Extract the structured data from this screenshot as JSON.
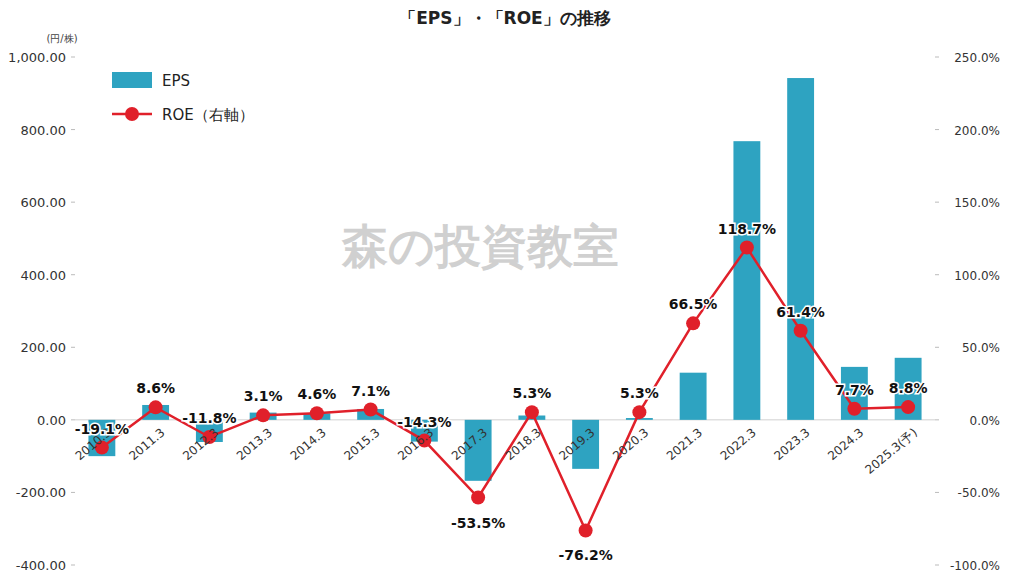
{
  "chart_data": {
    "type": "bar",
    "title": "「EPS」・「ROE」の推移",
    "y_label": "(円/株)",
    "annotations": [
      "森の投資教室"
    ],
    "categories": [
      "2010.3",
      "2011.3",
      "2012.3",
      "2013.3",
      "2014.3",
      "2015.3",
      "2016.3",
      "2017.3",
      "2018.3",
      "2019.3",
      "2020.3",
      "2021.3",
      "2022.3",
      "2023.3",
      "2024.3",
      "2025.3(予)"
    ],
    "series": [
      {
        "name": "EPS",
        "type": "bar",
        "color": "#2ea3c1",
        "values": [
          -100,
          41,
          -61,
          20,
          18,
          30,
          -60,
          -168,
          12,
          -135,
          5,
          130,
          768,
          942,
          146,
          171
        ]
      },
      {
        "name": "ROE（右軸）",
        "type": "line",
        "axis": "y2",
        "color": "#e0202a",
        "marker": "circle",
        "line_style": "solid",
        "data_labels": true,
        "values": [
          -19.1,
          8.6,
          -11.8,
          3.1,
          4.6,
          7.1,
          -14.3,
          -53.5,
          5.3,
          -76.2,
          5.3,
          66.5,
          118.7,
          61.4,
          7.7,
          8.8
        ],
        "value_labels": [
          "-19.1%",
          "8.6%",
          "-11.8%",
          "3.1%",
          "4.6%",
          "7.1%",
          "-14.3%",
          "-53.5%",
          "5.3%",
          "-76.2%",
          "5.3%",
          "66.5%",
          "118.7%",
          "61.4%",
          "7.7%",
          "8.8%"
        ]
      }
    ],
    "ylim": [
      -400,
      1000
    ],
    "yticks": [
      {
        "value": -400,
        "label": "-400.00"
      },
      {
        "value": -200,
        "label": "-200.00"
      },
      {
        "value": 0,
        "label": "0.00"
      },
      {
        "value": 200,
        "label": "200.00"
      },
      {
        "value": 400,
        "label": "400.00"
      },
      {
        "value": 600,
        "label": "600.00"
      },
      {
        "value": 800,
        "label": "800.00"
      },
      {
        "value": 1000,
        "label": "1,000.00"
      }
    ],
    "y2lim": [
      -100,
      250
    ],
    "y2ticks": [
      {
        "value": -100,
        "label": "-100.0%"
      },
      {
        "value": -50,
        "label": "-50.0%"
      },
      {
        "value": 0,
        "label": "0.0%"
      },
      {
        "value": 50,
        "label": "50.0%"
      },
      {
        "value": 100,
        "label": "100.0%"
      },
      {
        "value": 150,
        "label": "150.0%"
      },
      {
        "value": 200,
        "label": "200.0%"
      },
      {
        "value": 250,
        "label": "250.0%"
      }
    ],
    "grid": false,
    "legend": "upper left"
  }
}
